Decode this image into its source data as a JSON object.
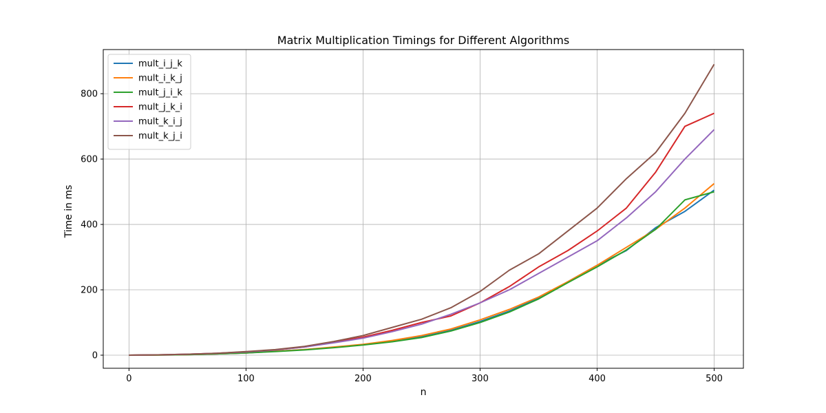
{
  "chart_data": {
    "type": "line",
    "title": "Matrix Multiplication Timings for Different Algorithms",
    "xlabel": "n",
    "ylabel": "Time in ms",
    "xlim": [
      -22,
      525
    ],
    "ylim": [
      -40,
      935
    ],
    "xticks": [
      0,
      100,
      200,
      300,
      400,
      500
    ],
    "yticks": [
      0,
      200,
      400,
      600,
      800
    ],
    "grid": true,
    "legend_position": "upper-left",
    "x": [
      0,
      25,
      50,
      75,
      100,
      125,
      150,
      175,
      200,
      225,
      250,
      275,
      300,
      325,
      350,
      375,
      400,
      425,
      450,
      475,
      500
    ],
    "series": [
      {
        "name": "mult_i_j_k",
        "color": "#1f77b4",
        "values": [
          0,
          0.5,
          1.5,
          4,
          7,
          12,
          17,
          24,
          32,
          42,
          56,
          76,
          103,
          135,
          175,
          225,
          275,
          320,
          390,
          440,
          505
        ]
      },
      {
        "name": "mult_i_k_j",
        "color": "#ff7f0e",
        "values": [
          0,
          0.5,
          1.5,
          4,
          7,
          12,
          17,
          25,
          33,
          45,
          60,
          80,
          108,
          140,
          178,
          225,
          275,
          330,
          385,
          450,
          525
        ]
      },
      {
        "name": "mult_j_i_k",
        "color": "#2ca02c",
        "values": [
          0,
          0.5,
          1.5,
          4,
          7,
          11,
          16,
          23,
          31,
          41,
          54,
          74,
          100,
          132,
          172,
          222,
          270,
          322,
          385,
          475,
          500
        ]
      },
      {
        "name": "mult_j_k_i",
        "color": "#d62728",
        "values": [
          0,
          1,
          3,
          6,
          10,
          16,
          25,
          40,
          55,
          76,
          100,
          120,
          160,
          210,
          270,
          320,
          380,
          450,
          560,
          700,
          740
        ]
      },
      {
        "name": "mult_k_i_j",
        "color": "#9467bd",
        "values": [
          0,
          1,
          3,
          6,
          10,
          16,
          25,
          38,
          52,
          72,
          95,
          125,
          160,
          200,
          250,
          300,
          350,
          420,
          500,
          600,
          690
        ]
      },
      {
        "name": "mult_k_j_i",
        "color": "#8c564b",
        "values": [
          0,
          1,
          3,
          6,
          11,
          17,
          27,
          42,
          60,
          85,
          110,
          145,
          195,
          260,
          310,
          380,
          450,
          540,
          620,
          740,
          890
        ]
      }
    ]
  }
}
